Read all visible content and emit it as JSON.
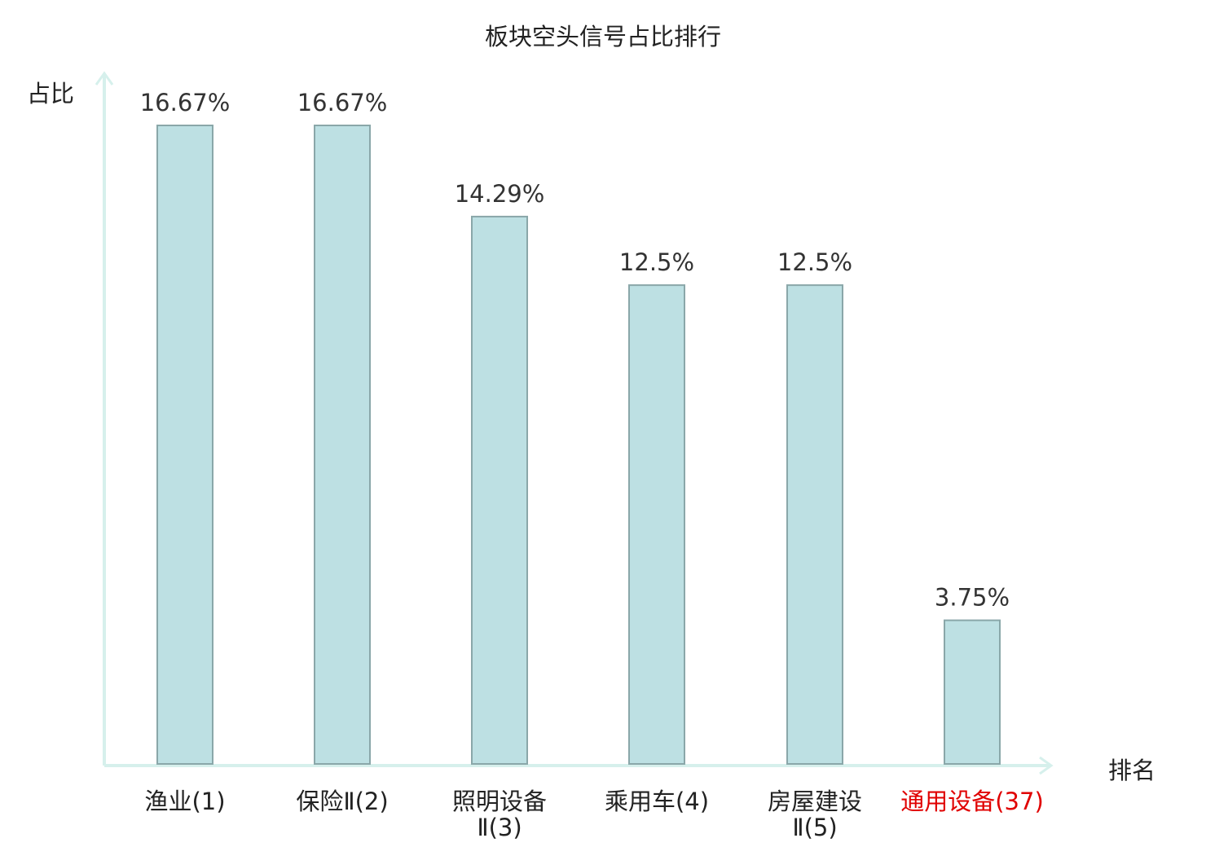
{
  "chart_data": {
    "type": "bar",
    "title": "板块空头信号占比排行",
    "ylabel": "占比",
    "xlabel": "排名",
    "categories": [
      {
        "name": "渔业",
        "rank": "(1)"
      },
      {
        "name": "保险Ⅱ",
        "rank": "(2)"
      },
      {
        "name": "照明设备",
        "name_line2": "Ⅱ",
        "rank": "(3)"
      },
      {
        "name": "乘用车",
        "rank": "(4)"
      },
      {
        "name": "房屋建设",
        "name_line2": "Ⅱ",
        "rank": "(5)"
      },
      {
        "name": "通用设备",
        "rank": "(37)",
        "highlight": true
      }
    ],
    "values": [
      16.67,
      16.67,
      14.29,
      12.5,
      12.5,
      3.75
    ],
    "value_labels": [
      "16.67%",
      "16.67%",
      "14.29%",
      "12.5%",
      "12.5%",
      "3.75%"
    ],
    "ylim": [
      0,
      16.67
    ],
    "grid": false,
    "colors": {
      "bar_fill": "#bde0e3",
      "bar_stroke": "#8aa7a9",
      "axis": "#d6f0ec",
      "highlight_text": "#e00000"
    }
  }
}
